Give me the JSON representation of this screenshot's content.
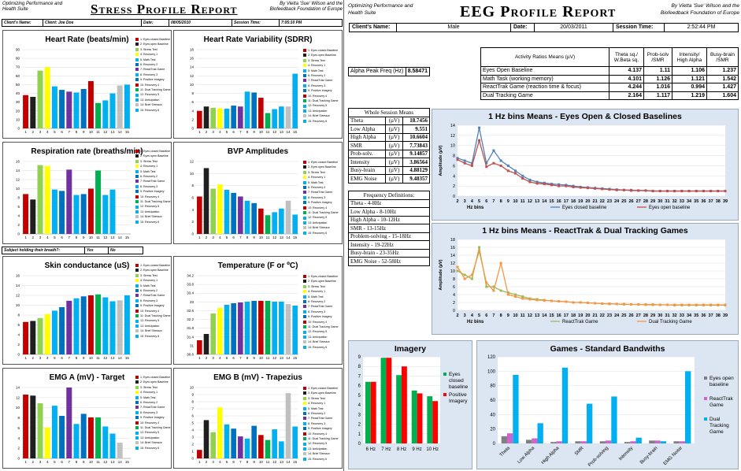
{
  "left": {
    "org": "Optimizing Performance and Health Suite",
    "title": "Stress Profile Report",
    "author": "By Vietta 'Sue' Wilson and the Biofeedback Foundation of Europe",
    "info": {
      "client_name_label": "Client's Name:",
      "client_name_value": "Client: Joe Doe",
      "date_label": "Date:",
      "date_value": "08/05/2010",
      "session_time_label": "Session Time:",
      "session_time_value": "7:05:10 PM"
    },
    "question": {
      "label": "Subject holding their breath?:",
      "yes": "Yes",
      "no": "No"
    },
    "legend_items": [
      "1: Eyes closed Baseline",
      "2: Eyes open Baseline",
      "3: Stress Test",
      "4: Recovery 1",
      "5: Math Test",
      "6: Recovery 2",
      "7: ReactTrak Game",
      "8: Recovery 3",
      "9: Positive Imagery",
      "10: Recovery 4",
      "11: Dual Tracking Game",
      "12: Recovery 5",
      "13: Anticipation",
      "14: Brief Stressor",
      "15: Recovery 6"
    ],
    "bar_colors": [
      "#c00000",
      "#1f1f1f",
      "#92d050",
      "#ffff00",
      "#00b0f0",
      "#0070c0",
      "#7030a0",
      "#00b0f0",
      "#0070c0",
      "#c00000",
      "#00b050",
      "#00b0f0",
      "#00b0f0",
      "#c0c0c0",
      "#00b0f0"
    ],
    "x_categories": [
      "1",
      "2",
      "3",
      "4",
      "5",
      "6",
      "7",
      "8",
      "9",
      "10",
      "11",
      "12",
      "13",
      "14",
      "15"
    ],
    "charts": [
      {
        "title": "Heart Rate (beats/min)",
        "y_ticks": [
          "0",
          "10",
          "20",
          "30",
          "40",
          "50",
          "60",
          "70",
          "80",
          "90"
        ],
        "ymax": 90,
        "values": [
          38,
          36,
          66,
          70,
          48,
          44,
          42,
          41,
          45,
          54,
          29,
          32,
          40,
          49,
          50
        ]
      },
      {
        "title": "Heart Rate Variability (SDRR)",
        "y_ticks": [
          "0",
          "2",
          "4",
          "6",
          "8",
          "10",
          "12",
          "14",
          "16",
          "18"
        ],
        "ymax": 18,
        "values": [
          4,
          5,
          4.7,
          4.6,
          4.5,
          5.2,
          5,
          8.4,
          8.2,
          7,
          3.5,
          4.4,
          5,
          5,
          12.5
        ]
      },
      {
        "title": "Respiration rate (breaths/min)",
        "y_ticks": [
          "0",
          "2",
          "4",
          "6",
          "8",
          "10",
          "12",
          "14",
          "16"
        ],
        "ymax": 16,
        "values": [
          8.8,
          7.6,
          15.2,
          15,
          9.8,
          9.5,
          14.2,
          8.6,
          8.8,
          10,
          14,
          8.6,
          9.8,
          0,
          0
        ]
      },
      {
        "title": "BVP Amplitudes",
        "y_ticks": [
          "0",
          "2",
          "4",
          "6",
          "8",
          "10",
          "12"
        ],
        "ymax": 12,
        "values": [
          6.2,
          10.9,
          7.5,
          8.2,
          7.3,
          6.8,
          6.2,
          5.5,
          5.1,
          4.2,
          3.1,
          3.6,
          4.2,
          5.5,
          3.2
        ]
      },
      {
        "title": "Skin conductance (uS)",
        "y_ticks": [
          "0",
          "2",
          "4",
          "6",
          "8",
          "10",
          "12",
          "14",
          "16"
        ],
        "ymax": 16,
        "values": [
          6.6,
          6.8,
          7.4,
          8.2,
          8.9,
          9.6,
          10.9,
          11.4,
          11.8,
          12,
          12.2,
          11.6,
          10.8,
          11,
          12
        ]
      },
      {
        "title": "Temperature (F or ºC)",
        "y_ticks": [
          "30.6",
          "31",
          "31.4",
          "31.8",
          "32.2",
          "32.6",
          "33",
          "33.4",
          "33.8",
          "34.2"
        ],
        "ymax": 10,
        "values": [
          1.8,
          2.6,
          5.2,
          5.9,
          6.3,
          6.5,
          6.6,
          6.7,
          6.8,
          6.8,
          6.8,
          6.7,
          6.7,
          6.4,
          6.2
        ]
      },
      {
        "title": "EMG A (mV) - Target",
        "y_ticks": [
          "0",
          "2",
          "4",
          "6",
          "8",
          "10",
          "12",
          "14"
        ],
        "ymax": 14,
        "values": [
          12.6,
          12.4,
          10.9,
          6.1,
          10.4,
          8.4,
          14,
          6.8,
          8.8,
          8.1,
          8.1,
          6.3,
          4.9,
          3.1,
          0
        ]
      },
      {
        "title": "EMG B (mV) - Trapezius",
        "y_ticks": [
          "0",
          "1",
          "2",
          "3",
          "4",
          "5",
          "6",
          "7",
          "8",
          "9",
          "10"
        ],
        "ymax": 10,
        "values": [
          1.2,
          5.4,
          3.7,
          7.2,
          4.8,
          4.2,
          3.1,
          2.8,
          4.6,
          3.3,
          2.6,
          4.1,
          2.4,
          9.2,
          4.5
        ]
      }
    ]
  },
  "right": {
    "org": "Optimizing Performance and Health Suite",
    "title": "EEG Profile Report",
    "author": "By Vietta 'Sue' Wilson and the Biofeedback Foundation of Europe",
    "info": {
      "client_name_label": "Client's Name:",
      "client_name_value": "Male",
      "date_label": "Date:",
      "date_value": "20/03/2011",
      "session_time_label": "Session Time:",
      "session_time_value": "2:52:44 PM"
    },
    "ratios": {
      "headers": [
        "Activity Ratios Means (µV)",
        "Theta sq./ W.Beta sq.",
        "Prob-solv /SMR",
        "Intensity/ High Alpha",
        "Busy-brain /SMR"
      ],
      "rows": [
        {
          "label": "Eyes Open Baseline",
          "v": [
            "4.137",
            "1.11",
            "1.106",
            "1.237"
          ]
        },
        {
          "label": "Math Task (working memory)",
          "v": [
            "4.101",
            "1.126",
            "1.121",
            "1.542"
          ]
        },
        {
          "label": "ReactTrak Game (reaction time & focus)",
          "v": [
            "4.244",
            "1.016",
            "0.994",
            "1.427"
          ]
        },
        {
          "label": "Dual Tracking Game",
          "v": [
            "2.164",
            "1.117",
            "1.219",
            "1.604"
          ]
        }
      ]
    },
    "alpha_peak": {
      "label": "Alpha Peak Freq (Hz)",
      "value": "8.58471"
    },
    "whole_session": {
      "title": "Whole Session Means",
      "unit": "(µV)",
      "rows": [
        {
          "label": "Theta",
          "value": "18.7456"
        },
        {
          "label": "Low Alpha",
          "value": "9.551"
        },
        {
          "label": "High Alpha",
          "value": "10.6604"
        },
        {
          "label": "SMR",
          "value": "7.73843"
        },
        {
          "label": "Prob-solv.",
          "value": "9.14857"
        },
        {
          "label": "Intensity",
          "value": "3.86564"
        },
        {
          "label": "Busy-brain",
          "value": "4.88129"
        },
        {
          "label": "EMG Noise",
          "value": "9.48357"
        }
      ]
    },
    "freq_defs": {
      "title": "Frequency Definitions:",
      "rows": [
        "Theta - 4-8Hz",
        "Low Alpha - 8-10Hz",
        "High Alpha - 10-12Hz",
        "SMR - 13-15Hz",
        "Problem-solving - 15-18Hz",
        "Intensity - 19-22Hz",
        "Busy-brain - 23-35Hz",
        "EMG Noise - 52-58Hz"
      ]
    },
    "bins_x": [
      "2",
      "3",
      "4",
      "5",
      "6",
      "7",
      "8",
      "9",
      "10",
      "11",
      "12",
      "13",
      "14",
      "15",
      "16",
      "17",
      "18",
      "19",
      "20",
      "21",
      "22",
      "23",
      "24",
      "25",
      "26",
      "27",
      "28",
      "29",
      "30",
      "31",
      "32",
      "33",
      "34",
      "35",
      "36",
      "37",
      "38",
      "39"
    ],
    "line1": {
      "title": "1 Hz bins Means - Eyes Open & Closed Baselines",
      "ylabel": "Amplitude (µV)",
      "xlabel": "Hz bins",
      "y_ticks": [
        "0",
        "2",
        "4",
        "6",
        "8",
        "10",
        "12",
        "14"
      ],
      "ymax": 14,
      "series": [
        {
          "name": "Eyes closed baseline",
          "color": "#4f81bd",
          "values": [
            7.5,
            7,
            6.5,
            13.5,
            6.5,
            9,
            7,
            6,
            5,
            4,
            3.2,
            2.8,
            2.6,
            2.4,
            2.3,
            2.2,
            2,
            1.8,
            1.7,
            1.6,
            1.5,
            1.4,
            1.3,
            1.2,
            1.2,
            1.1,
            1.1,
            1,
            1,
            1,
            1,
            1,
            1,
            1,
            1,
            1,
            1,
            1
          ]
        },
        {
          "name": "Eyes open baseline",
          "color": "#c0504d",
          "values": [
            7.2,
            6.5,
            6,
            11,
            5.8,
            6.5,
            6,
            5,
            4.5,
            3.5,
            2.8,
            2.5,
            2.4,
            2.2,
            2,
            2,
            1.8,
            1.7,
            1.6,
            1.5,
            1.4,
            1.3,
            1.2,
            1.2,
            1.1,
            1.1,
            1.1,
            1,
            1,
            1,
            1,
            1,
            1,
            1,
            1,
            1,
            1,
            1
          ]
        }
      ]
    },
    "line2": {
      "title": "1 Hz bins Means - ReactTrak & Dual Tracking Games",
      "ylabel": "Amplitude (µV)",
      "xlabel": "Hz bins",
      "y_ticks": [
        "0",
        "2",
        "4",
        "6",
        "8",
        "10",
        "12",
        "14",
        "16",
        "18"
      ],
      "ymax": 18,
      "series": [
        {
          "name": "ReactTrak Game",
          "color": "#9bbb59",
          "values": [
            10,
            9,
            8,
            16,
            6,
            6,
            5,
            4.5,
            4,
            3.5,
            3,
            2.8,
            2.6,
            2.4,
            2.3,
            2.2,
            2,
            2,
            1.9,
            1.8,
            1.7,
            1.6,
            1.6,
            1.5,
            1.5,
            1.5,
            1.4,
            1.4,
            1.4,
            1.4,
            1.3,
            1.3,
            1.3,
            1.3,
            1.3,
            1.3,
            1.3,
            1.3
          ]
        },
        {
          "name": "Dual Tracking Game",
          "color": "#f79646",
          "values": [
            11,
            8,
            9,
            15,
            7,
            5,
            12,
            4,
            3.5,
            3,
            2.8,
            2.6,
            2.5,
            2.4,
            2.3,
            2.2,
            2,
            2,
            1.9,
            1.8,
            1.7,
            1.7,
            1.6,
            1.6,
            1.5,
            1.5,
            1.5,
            1.5,
            1.4,
            1.4,
            1.4,
            1.4,
            1.4,
            1.4,
            1.4,
            1.4,
            1.4,
            1.4
          ]
        }
      ]
    },
    "imagery": {
      "title": "Imagery",
      "categories": [
        "6 Hz",
        "7 Hz",
        "8 Hz",
        "9 Hz",
        "10 Hz"
      ],
      "y_ticks": [
        "0",
        "1",
        "2",
        "3",
        "4",
        "5",
        "6",
        "7",
        "8",
        "9"
      ],
      "ymax": 9,
      "series": [
        {
          "name": "Eyes closed baseline",
          "color": "#00b050",
          "values": [
            6.4,
            8.9,
            7.1,
            5.5,
            4.9
          ]
        },
        {
          "name": "Positive Imagery",
          "color": "#ff0000",
          "values": [
            6.4,
            8.9,
            8,
            5.2,
            4.4
          ]
        }
      ]
    },
    "games": {
      "title": "Games - Standard Bandwiths",
      "categories": [
        "Theta",
        "Low Alpha",
        "High Alpha",
        "SMR",
        "Prob-solving",
        "Intensity",
        "Busy-brain",
        "EMG Noise"
      ],
      "y_ticks": [
        "0",
        "20",
        "40",
        "60",
        "80",
        "100",
        "120"
      ],
      "ymax": 120,
      "series": [
        {
          "name": "Eyes open baseline",
          "color": "#808080",
          "values": [
            10,
            5,
            2,
            3,
            3,
            2,
            4,
            3
          ]
        },
        {
          "name": "ReactTrak Game",
          "color": "#cc66cc",
          "values": [
            14,
            7,
            3,
            3,
            4,
            3,
            4,
            3
          ]
        },
        {
          "name": "Dual Tracking Game",
          "color": "#00b0f0",
          "values": [
            95,
            28,
            105,
            55,
            65,
            8,
            3,
            100
          ]
        }
      ]
    }
  }
}
